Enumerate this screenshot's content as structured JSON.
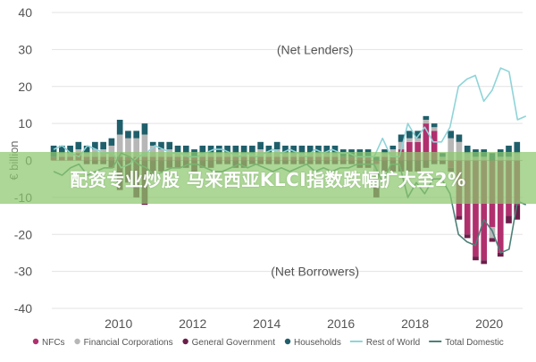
{
  "banner_text": "配资专业炒股 马来西亚KLCI指数跌幅扩大至2%",
  "chart_data": {
    "type": "bar",
    "ylabel": "€ billion",
    "ylim": [
      -40,
      40
    ],
    "yticks": [
      40,
      30,
      20,
      10,
      0,
      -10,
      -20,
      -30,
      -40
    ],
    "xlim": [
      2008.2,
      2020.9
    ],
    "xticks": [
      2010,
      2012,
      2014,
      2016,
      2018,
      2020
    ],
    "grid": true,
    "legend_position": "bottom",
    "annotations": [
      {
        "text": "(Net Lenders)",
        "x": 2015.3,
        "y": 30
      },
      {
        "text": "(Net Borrowers)",
        "x": 2015.3,
        "y": -30
      }
    ],
    "colors": {
      "NFCs": "#b0306e",
      "Financial Corporations": "#b7b7b7",
      "General Government": "#6b1e4a",
      "Households": "#1f5f6b",
      "Rest of World": "#8fd4d8",
      "Total Domestic": "#4d8077"
    },
    "stacked_series": [
      {
        "name": "NFCs",
        "values": [
          1,
          1,
          1,
          2,
          1,
          1,
          1,
          1,
          1,
          1,
          1,
          1,
          1,
          1,
          1,
          1,
          1,
          1,
          1,
          1,
          1,
          1,
          1,
          1,
          1,
          1,
          1,
          1,
          1,
          1,
          1,
          1,
          1,
          1,
          1,
          1,
          1,
          1,
          1,
          -1,
          1,
          1,
          3,
          5,
          5,
          10,
          8,
          0,
          -2,
          -15,
          -20,
          -26,
          -27,
          -18,
          -25,
          -15,
          -12
        ]
      },
      {
        "name": "Financial Corporations",
        "values": [
          0,
          1,
          1,
          1,
          1,
          2,
          2,
          3,
          6,
          5,
          5,
          6,
          3,
          2,
          2,
          1,
          1,
          0,
          1,
          1,
          1,
          1,
          1,
          1,
          1,
          2,
          1,
          2,
          1,
          1,
          1,
          1,
          1,
          1,
          1,
          0,
          0,
          0,
          0,
          -6,
          1,
          2,
          2,
          1,
          1,
          1,
          1,
          1,
          6,
          5,
          2,
          1,
          1,
          -3,
          1,
          1,
          2
        ]
      },
      {
        "name": "General Government",
        "values": [
          0,
          0,
          0,
          0,
          -1,
          -1,
          -1,
          -2,
          -8,
          -6,
          -10,
          -12,
          -4,
          -3,
          -2,
          -2,
          -2,
          -3,
          -2,
          -2,
          -1,
          -1,
          -2,
          -2,
          -1,
          -1,
          -1,
          -1,
          -1,
          -1,
          -1,
          -1,
          -1,
          -1,
          -1,
          -1,
          -1,
          -2,
          -2,
          -3,
          -3,
          -3,
          -3,
          -3,
          -3,
          -2,
          -1,
          -1,
          -1,
          -1,
          -1,
          -1,
          -1,
          -1,
          -1,
          -2,
          -4
        ]
      },
      {
        "name": "Households",
        "values": [
          3,
          2,
          2,
          2,
          2,
          2,
          2,
          2,
          4,
          2,
          2,
          3,
          1,
          2,
          2,
          2,
          2,
          2,
          2,
          2,
          2,
          2,
          2,
          2,
          2,
          2,
          2,
          2,
          2,
          2,
          2,
          2,
          2,
          2,
          2,
          2,
          2,
          2,
          2,
          1,
          1,
          1,
          2,
          2,
          2,
          1,
          1,
          1,
          2,
          2,
          2,
          2,
          2,
          2,
          2,
          3,
          3
        ]
      }
    ],
    "line_series": [
      {
        "name": "Rest of World",
        "x_start": 2008.25,
        "x_step": 0.2275,
        "values": [
          3,
          4,
          2,
          1,
          4,
          3,
          2,
          2,
          -2,
          -1,
          1,
          2,
          4,
          3,
          2,
          2,
          1,
          1,
          2,
          3,
          3,
          2,
          1,
          2,
          1,
          2,
          3,
          2,
          3,
          2,
          1,
          3,
          2,
          3,
          2,
          2,
          1,
          1,
          1,
          6,
          1,
          1,
          10,
          6,
          9,
          5,
          5,
          9,
          20,
          22,
          23,
          16,
          19,
          25,
          24,
          11,
          12
        ]
      },
      {
        "name": "Total Domestic",
        "x_start": 2008.25,
        "x_step": 0.2275,
        "values": [
          -3,
          -4,
          -2,
          -1,
          -4,
          -3,
          -2,
          -2,
          2,
          1,
          -1,
          -2,
          -4,
          -3,
          -2,
          -2,
          -1,
          -1,
          -2,
          -3,
          -3,
          -2,
          -1,
          -2,
          -1,
          -2,
          -3,
          -2,
          -3,
          -2,
          -1,
          -3,
          -2,
          -3,
          -2,
          -2,
          -1,
          -1,
          -1,
          -6,
          -1,
          -1,
          -10,
          -6,
          -9,
          -5,
          -5,
          -9,
          -20,
          -22,
          -23,
          -16,
          -19,
          -25,
          -24,
          -11,
          -12
        ]
      }
    ]
  },
  "legend": [
    {
      "label": "NFCs",
      "kind": "dot"
    },
    {
      "label": "Financial Corporations",
      "kind": "dot"
    },
    {
      "label": "General Government",
      "kind": "dot"
    },
    {
      "label": "Households",
      "kind": "dot"
    },
    {
      "label": "Rest of World",
      "kind": "line"
    },
    {
      "label": "Total Domestic",
      "kind": "line"
    }
  ]
}
